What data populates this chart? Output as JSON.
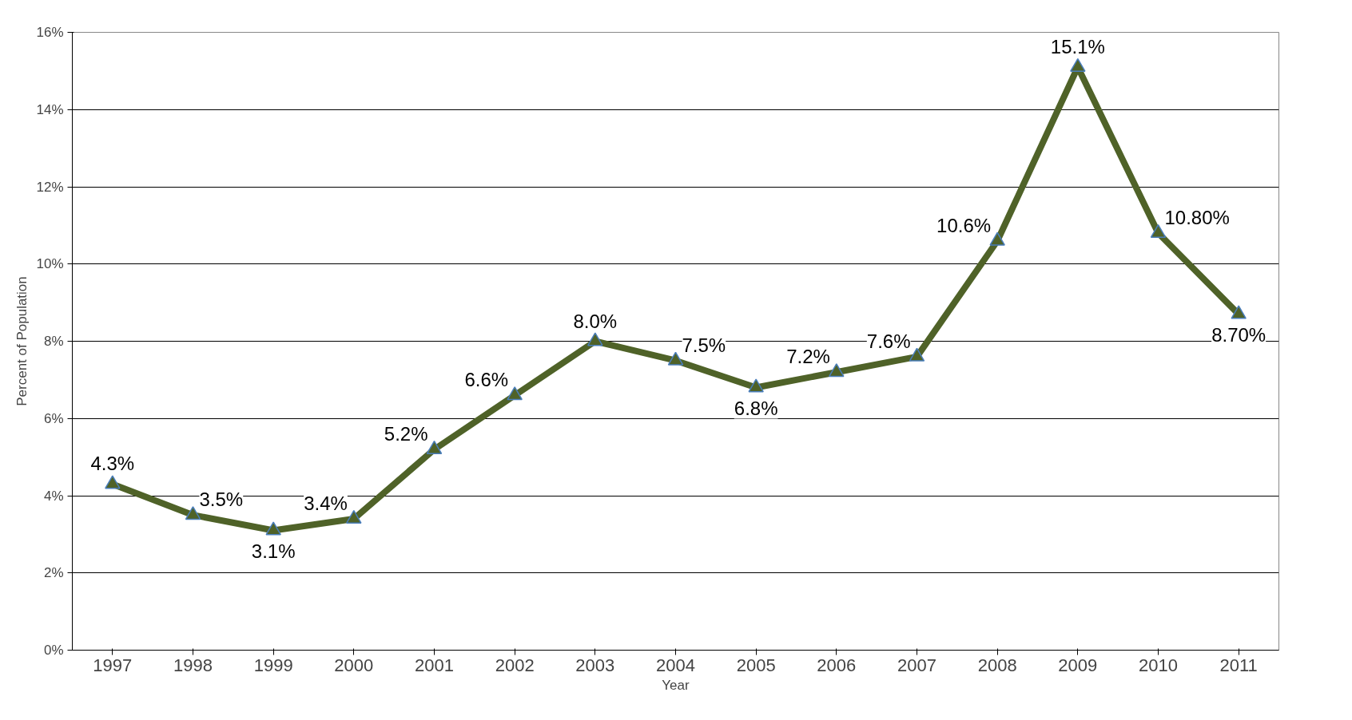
{
  "chart_data": {
    "type": "line",
    "xlabel": "Year",
    "ylabel": "Percent of Population",
    "categories": [
      "1997",
      "1998",
      "1999",
      "2000",
      "2001",
      "2002",
      "2003",
      "2004",
      "2005",
      "2006",
      "2007",
      "2008",
      "2009",
      "2010",
      "2011"
    ],
    "series": [
      {
        "color": "#4f6228",
        "values": [
          4.3,
          3.5,
          3.1,
          3.4,
          5.2,
          6.6,
          8.0,
          7.5,
          6.8,
          7.2,
          7.6,
          10.6,
          15.1,
          10.8,
          8.7
        ],
        "value_labels": [
          "4.3%",
          "3.5%",
          "3.1%",
          "3.4%",
          "5.2%",
          "6.6%",
          "8.0%",
          "7.5%",
          "6.8%",
          "7.2%",
          "7.6%",
          "10.6%",
          "15.1%",
          "10.80%",
          "8.70%"
        ]
      }
    ],
    "ylim": [
      0,
      16
    ],
    "yticks": [
      {
        "value": 0,
        "label": "0%"
      },
      {
        "value": 2,
        "label": "2%"
      },
      {
        "value": 4,
        "label": "4%"
      },
      {
        "value": 6,
        "label": "6%"
      },
      {
        "value": 8,
        "label": "8%"
      },
      {
        "value": 10,
        "label": "10%"
      },
      {
        "value": 12,
        "label": "12%"
      },
      {
        "value": 14,
        "label": "14%"
      },
      {
        "value": 16,
        "label": "16%"
      }
    ],
    "grid": "y",
    "marker": "triangle",
    "line_style": "solid"
  }
}
